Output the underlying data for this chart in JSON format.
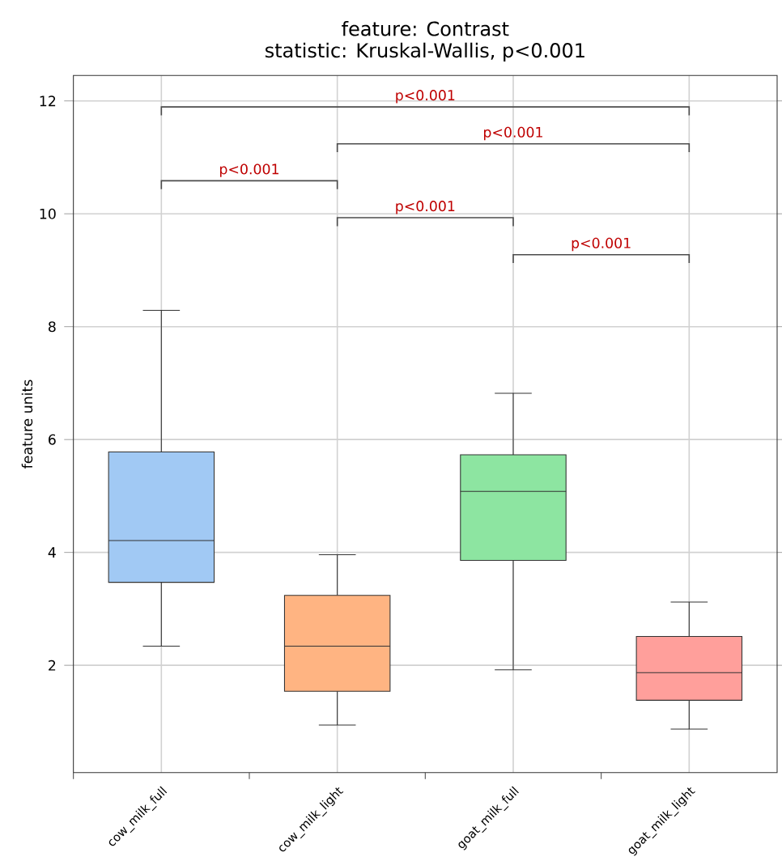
{
  "chart_data": {
    "type": "box",
    "title": "feature: Contrast",
    "subtitle": "statistic: Kruskal-Wallis, p<0.001",
    "ylabel": "feature units",
    "categories": [
      "cow_milk_full",
      "cow_milk_light",
      "goat_milk_full",
      "goat_milk_light"
    ],
    "colors": [
      "#a1c9f4",
      "#ffb482",
      "#8de5a1",
      "#ff9f9b"
    ],
    "boxes": [
      {
        "low": 2.34,
        "q1": 3.47,
        "median": 4.21,
        "q3": 5.78,
        "high": 8.29
      },
      {
        "low": 0.94,
        "q1": 1.54,
        "median": 2.34,
        "q3": 3.24,
        "high": 3.96
      },
      {
        "low": 1.92,
        "q1": 3.86,
        "median": 5.08,
        "q3": 5.73,
        "high": 6.82
      },
      {
        "low": 0.87,
        "q1": 1.38,
        "median": 1.87,
        "q3": 2.51,
        "high": 3.12
      }
    ],
    "ylim": [
      0.1,
      12.45
    ],
    "yticks": [
      2,
      4,
      6,
      8,
      10,
      12
    ],
    "grid": true,
    "annotations": [
      "p<0.001",
      "p<0.001",
      "p<0.001",
      "p<0.001",
      "p<0.001"
    ]
  }
}
